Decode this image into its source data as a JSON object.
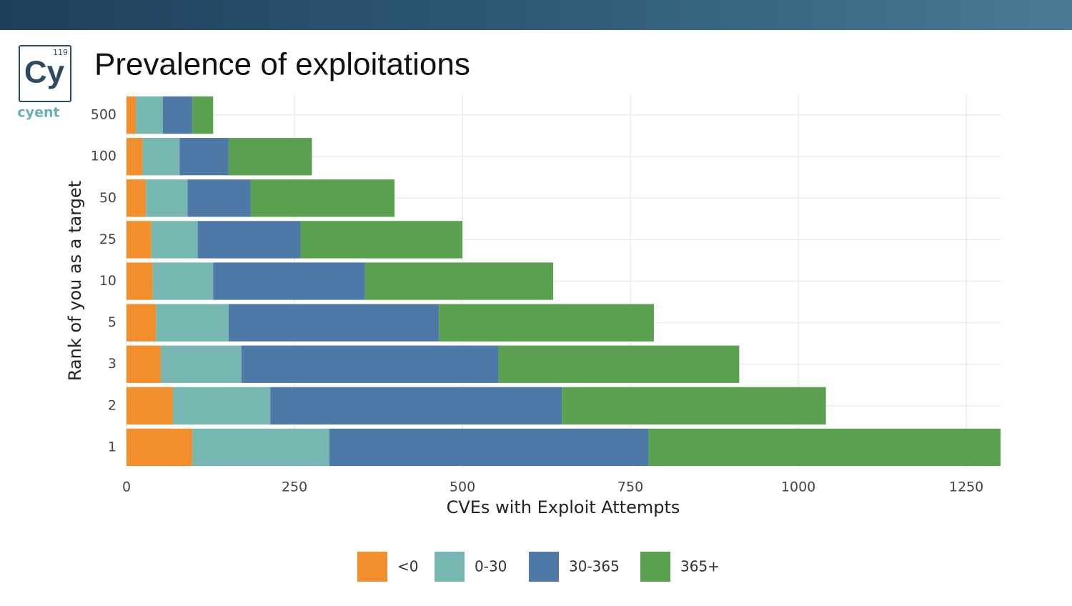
{
  "logo": {
    "number": "119",
    "symbol": "Cy",
    "name": "cyent"
  },
  "chart_data": {
    "type": "stacked-barh",
    "title": "Prevalence of exploitations",
    "xlabel": "CVEs with Exploit Attempts",
    "ylabel": "Rank of you as a target",
    "categories": [
      "1",
      "2",
      "3",
      "5",
      "10",
      "25",
      "50",
      "100",
      "500"
    ],
    "series": [
      {
        "name": "<0",
        "color": "#f28e2b",
        "values": [
          98,
          69,
          51,
          44,
          39,
          37,
          29,
          24,
          14
        ]
      },
      {
        "name": "0-30",
        "color": "#76b7b2",
        "values": [
          204,
          145,
          120,
          108,
          90,
          69,
          62,
          55,
          40
        ]
      },
      {
        "name": "30-365",
        "color": "#4e79a7",
        "values": [
          475,
          434,
          383,
          313,
          226,
          153,
          94,
          73,
          44
        ]
      },
      {
        "name": "365+",
        "color": "#59a14f",
        "values": [
          524,
          393,
          358,
          320,
          280,
          241,
          214,
          124,
          31
        ]
      }
    ],
    "xlim": [
      0,
      1302
    ],
    "xticks": [
      0,
      250,
      500,
      750,
      1000,
      1250
    ],
    "grid": true,
    "legend": "bottom"
  }
}
